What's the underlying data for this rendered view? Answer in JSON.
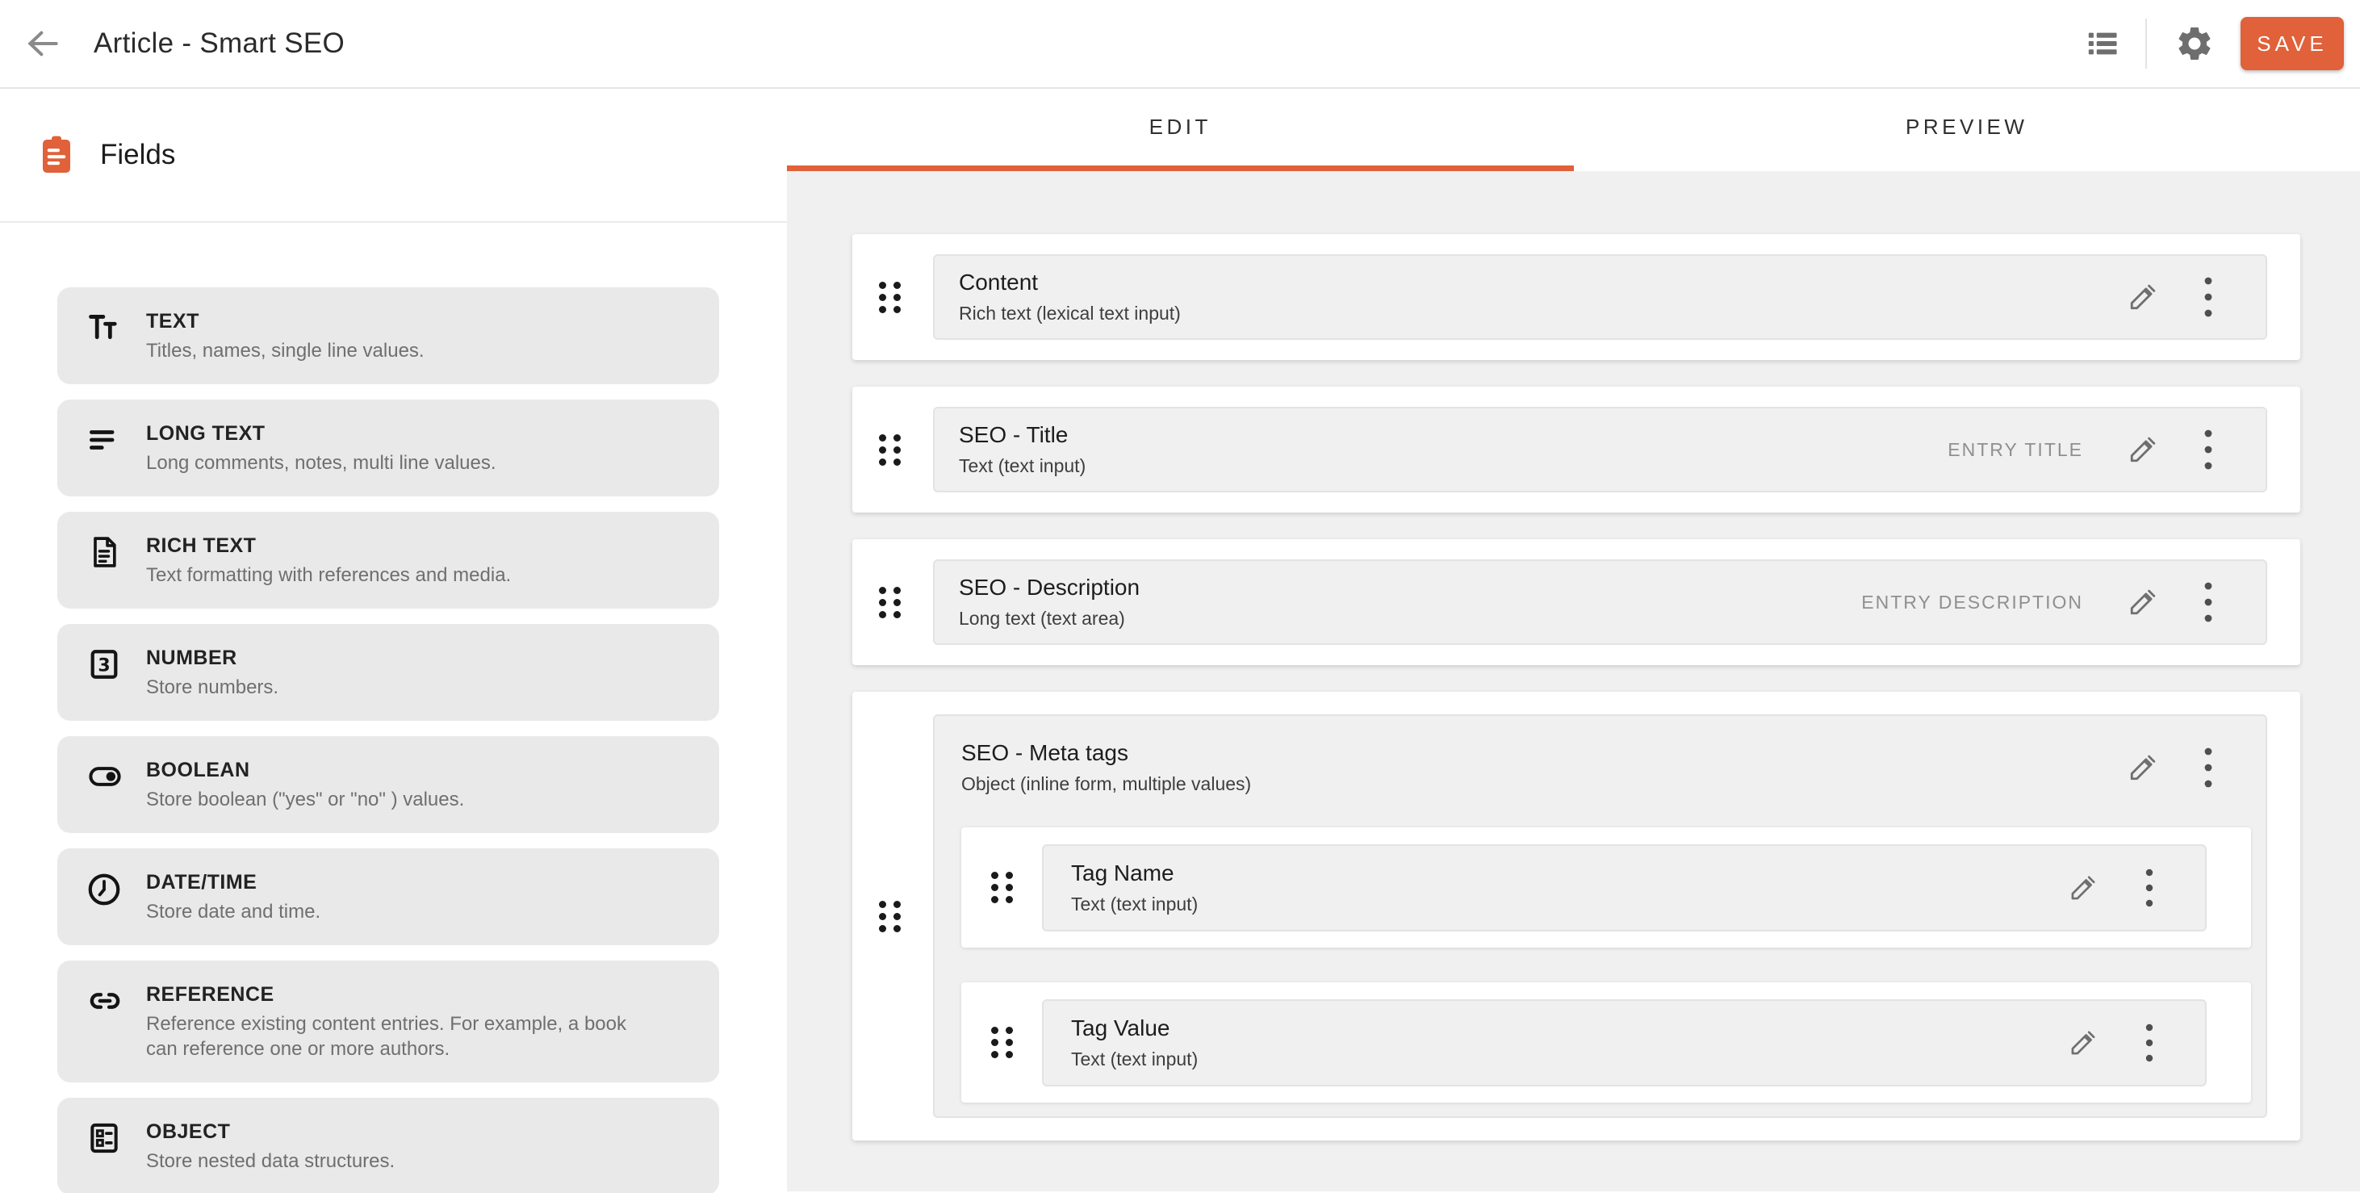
{
  "topbar": {
    "title": "Article - Smart SEO",
    "save_label": "SAVE"
  },
  "tabs": [
    {
      "label": "EDIT",
      "active": true
    },
    {
      "label": "PREVIEW",
      "active": false
    }
  ],
  "sidebar": {
    "header": "Fields",
    "items": [
      {
        "icon": "text-icon",
        "title": "TEXT",
        "desc": "Titles, names, single line values."
      },
      {
        "icon": "long-text-icon",
        "title": "LONG TEXT",
        "desc": "Long comments, notes, multi line values."
      },
      {
        "icon": "rich-text-icon",
        "title": "RICH TEXT",
        "desc": "Text formatting with references and media."
      },
      {
        "icon": "number-icon",
        "title": "NUMBER",
        "desc": "Store numbers."
      },
      {
        "icon": "boolean-icon",
        "title": "BOOLEAN",
        "desc": "Store boolean (\"yes\" or \"no\" ) values."
      },
      {
        "icon": "datetime-icon",
        "title": "DATE/TIME",
        "desc": "Store date and time."
      },
      {
        "icon": "reference-icon",
        "title": "REFERENCE",
        "desc": "Reference existing content entries. For example, a book can reference one or more authors."
      },
      {
        "icon": "object-icon",
        "title": "OBJECT",
        "desc": "Store nested data structures."
      }
    ]
  },
  "editor": {
    "fields": [
      {
        "title": "Content",
        "subtitle": "Rich text (lexical text input)",
        "badge": ""
      },
      {
        "title": "SEO - Title",
        "subtitle": "Text (text input)",
        "badge": "ENTRY TITLE"
      },
      {
        "title": "SEO - Description",
        "subtitle": "Long text (text area)",
        "badge": "ENTRY DESCRIPTION"
      },
      {
        "title": "SEO - Meta tags",
        "subtitle": "Object (inline form, multiple values)",
        "badge": "",
        "children": [
          {
            "title": "Tag Name",
            "subtitle": "Text (text input)"
          },
          {
            "title": "Tag Value",
            "subtitle": "Text (text input)"
          }
        ]
      }
    ]
  },
  "colors": {
    "accent": "#e0613a"
  }
}
